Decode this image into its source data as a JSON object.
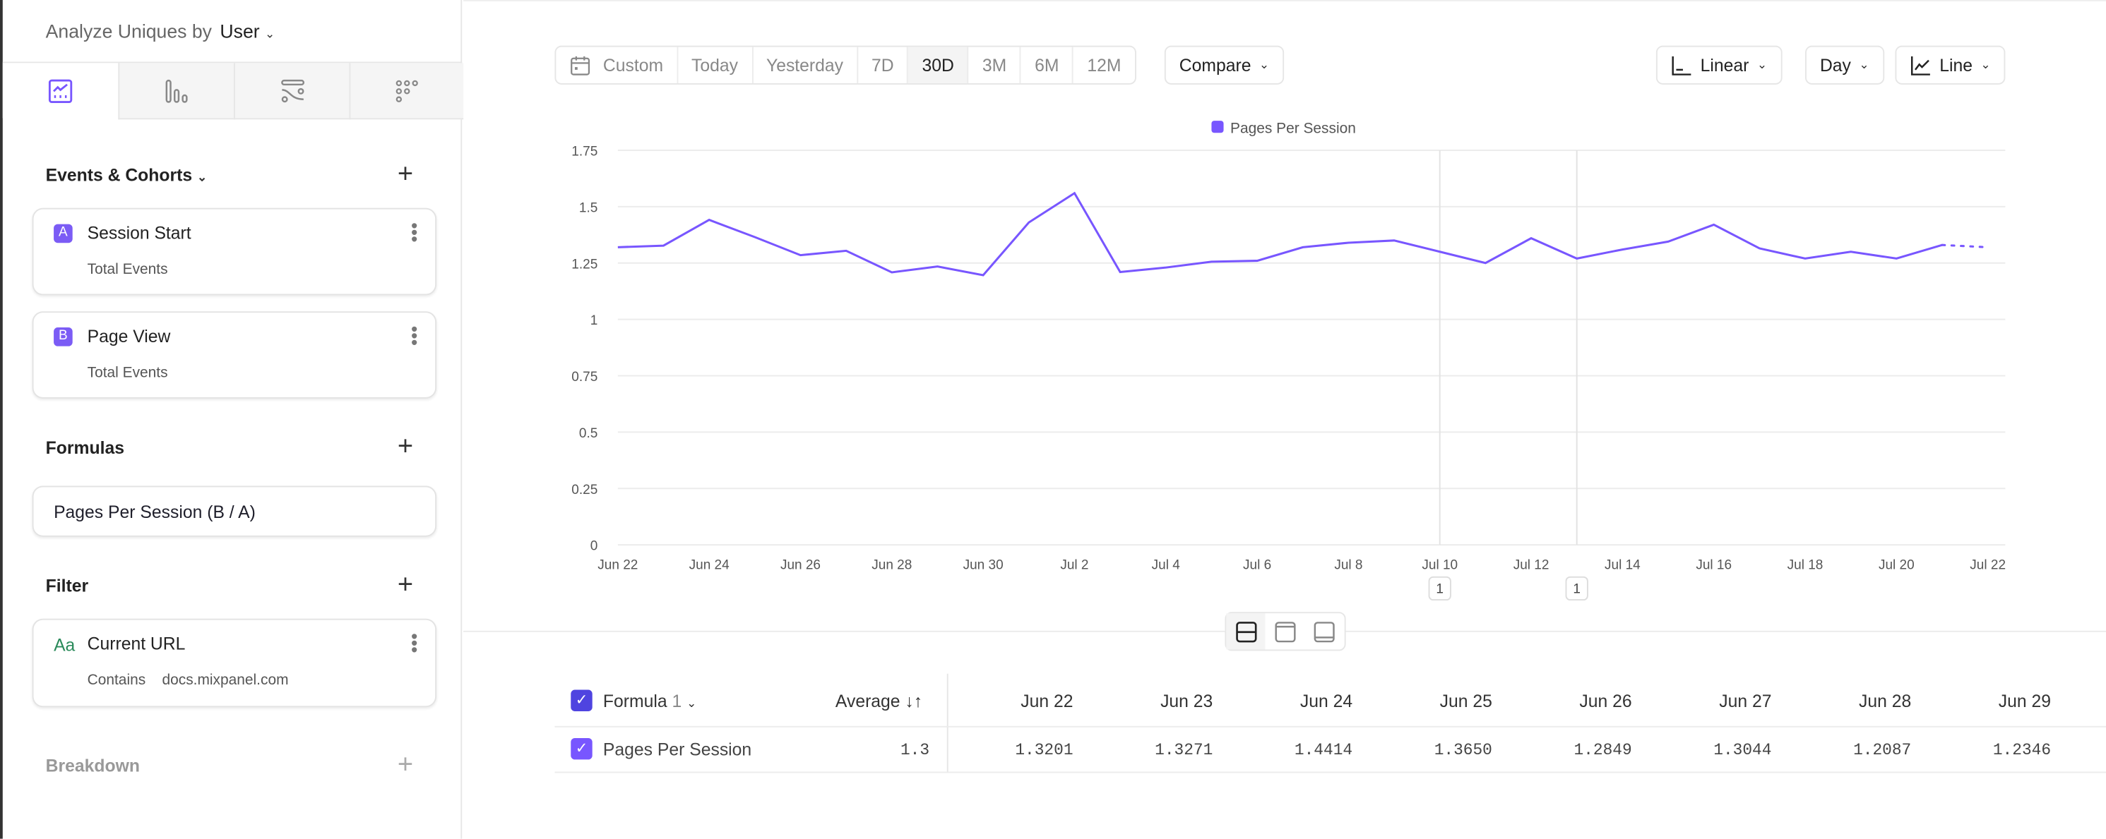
{
  "sidebar": {
    "analyze_label": "Analyze Uniques by",
    "analyze_value": "User",
    "tabs": [
      "insights-icon",
      "funnels-icon",
      "flows-icon",
      "retention-icon"
    ],
    "events_title": "Events & Cohorts",
    "events": [
      {
        "letter": "A",
        "name": "Session Start",
        "measure": "Total Events"
      },
      {
        "letter": "B",
        "name": "Page View",
        "measure": "Total Events"
      }
    ],
    "formulas_title": "Formulas",
    "formula": "Pages Per Session (B / A)",
    "filter_title": "Filter",
    "filter": {
      "type_icon": "Aa",
      "property": "Current URL",
      "operator": "Contains",
      "value": "docs.mixpanel.com"
    },
    "breakdown_title": "Breakdown"
  },
  "toolbar": {
    "ranges": [
      "Custom",
      "Today",
      "Yesterday",
      "7D",
      "30D",
      "3M",
      "6M",
      "12M"
    ],
    "selected_range": "30D",
    "compare": "Compare",
    "scale": "Linear",
    "interval": "Day",
    "chart_type": "Line"
  },
  "chart_data": {
    "type": "line",
    "legend": "top-center",
    "series": [
      {
        "name": "Pages Per Session",
        "color": "#7856ff",
        "values": [
          1.3201,
          1.3271,
          1.4414,
          1.365,
          1.2849,
          1.3044,
          1.2087,
          1.2346,
          1.196,
          1.43,
          1.56,
          1.21,
          1.23,
          1.256,
          1.26,
          1.32,
          1.34,
          1.35,
          1.3,
          1.25,
          1.36,
          1.27,
          1.31,
          1.345,
          1.42,
          1.315,
          1.27,
          1.3,
          1.27,
          1.33,
          1.32
        ]
      }
    ],
    "x": [
      "Jun 22",
      "Jun 23",
      "Jun 24",
      "Jun 25",
      "Jun 26",
      "Jun 27",
      "Jun 28",
      "Jun 29",
      "Jun 30",
      "Jul 1",
      "Jul 2",
      "Jul 3",
      "Jul 4",
      "Jul 5",
      "Jul 6",
      "Jul 7",
      "Jul 8",
      "Jul 9",
      "Jul 10",
      "Jul 11",
      "Jul 12",
      "Jul 13",
      "Jul 14",
      "Jul 15",
      "Jul 16",
      "Jul 17",
      "Jul 18",
      "Jul 19",
      "Jul 20",
      "Jul 21",
      "Jul 22"
    ],
    "x_tick_labels": [
      "Jun 22",
      "Jun 24",
      "Jun 26",
      "Jun 28",
      "Jun 30",
      "Jul 2",
      "Jul 4",
      "Jul 6",
      "Jul 8",
      "Jul 10",
      "Jul 12",
      "Jul 14",
      "Jul 16",
      "Jul 18",
      "Jul 20",
      "Jul 22"
    ],
    "y_ticks": [
      "0",
      "0.25",
      "0.5",
      "0.75",
      "1",
      "1.25",
      "1.5",
      "1.75"
    ],
    "ylim": [
      0,
      1.75
    ],
    "grid": true,
    "incomplete_last_point": true,
    "annotations": [
      {
        "x": "Jul 10",
        "label": "1"
      },
      {
        "x": "Jul 13",
        "label": "1"
      }
    ]
  },
  "table": {
    "group_label": "Formula",
    "group_count": "1",
    "average_label": "Average",
    "columns": [
      "Jun 22",
      "Jun 23",
      "Jun 24",
      "Jun 25",
      "Jun 26",
      "Jun 27",
      "Jun 28",
      "Jun 29"
    ],
    "rows": [
      {
        "name": "Pages Per Session",
        "average": "1.3",
        "values": [
          "1.3201",
          "1.3271",
          "1.4414",
          "1.3650",
          "1.2849",
          "1.3044",
          "1.2087",
          "1.2346"
        ]
      }
    ]
  }
}
